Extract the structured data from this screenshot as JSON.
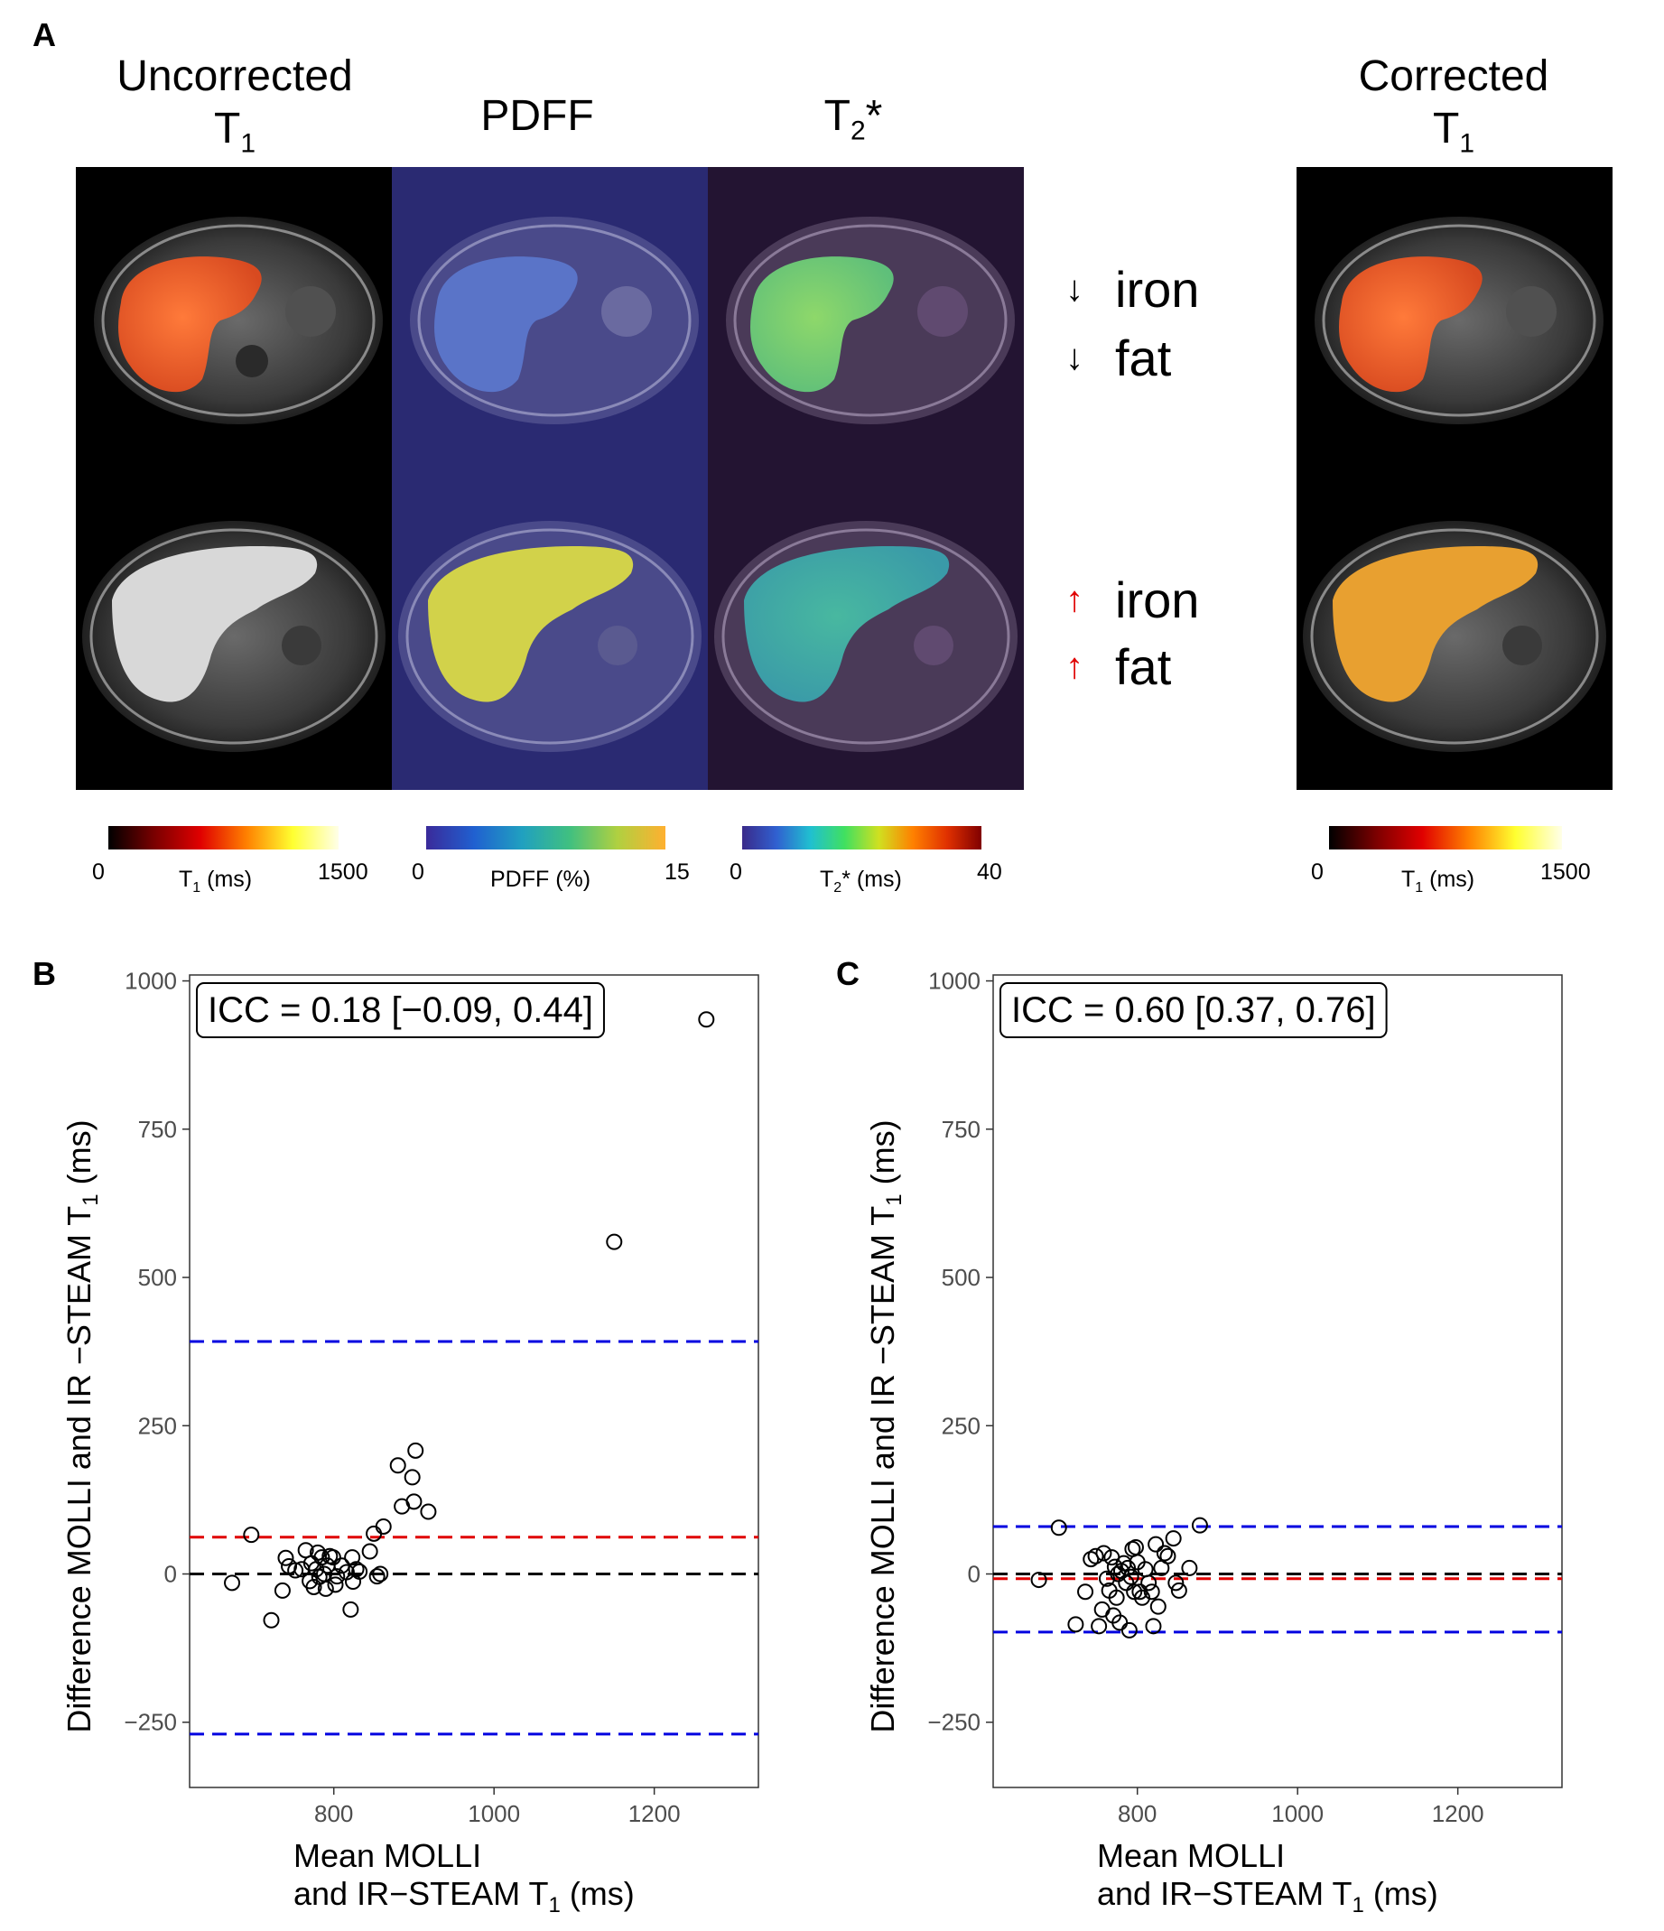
{
  "panel_a": {
    "letter": "A",
    "titles": {
      "uncorrected_line1": "Uncorrected",
      "uncorrected_sym": "T",
      "uncorrected_sub": "1",
      "pdff": "PDFF",
      "t2_sym": "T",
      "t2_sub": "2",
      "t2_star": "*",
      "corrected_line1": "Corrected",
      "corrected_sym": "T",
      "corrected_sub": "1"
    },
    "annotations": {
      "top": {
        "arrow": "↓",
        "iron": "iron",
        "fat": "fat",
        "color": "#000000"
      },
      "bottom": {
        "arrow": "↑",
        "iron": "iron",
        "fat": "fat",
        "color": "#e00000"
      }
    },
    "colorbars": {
      "t1_left": {
        "min": "0",
        "max": "1500",
        "label_sym": "T",
        "label_sub": "1",
        "label_unit": " (ms)"
      },
      "pdff": {
        "min": "0",
        "max": "15",
        "label": "PDFF (%)"
      },
      "t2": {
        "min": "0",
        "max": "40",
        "label_sym": "T",
        "label_sub": "2",
        "label_rest": "* (ms)"
      },
      "t1_right": {
        "min": "0",
        "max": "1500",
        "label_sym": "T",
        "label_sub": "1",
        "label_unit": " (ms)"
      }
    }
  },
  "chart_data": [
    {
      "panel": "B",
      "type": "scatter",
      "icc": "ICC = 0.18 [−0.09, 0.44]",
      "xlabel_line1": "Mean MOLLI",
      "xlabel_line2_pre": "and IR−STEAM T",
      "xlabel_sub": "1",
      "xlabel_line2_post": " (ms)",
      "ylabel_pre": "Difference MOLLI and IR −STEAM T",
      "ylabel_sub": "1",
      "ylabel_post": " (ms)",
      "xlim": [
        620,
        1330
      ],
      "ylim": [
        -360,
        1010
      ],
      "xticks": [
        800,
        1000,
        1200
      ],
      "yticks": [
        1000,
        750,
        500,
        250,
        0,
        -250
      ],
      "ytick_labels": [
        "1000",
        "750",
        "500",
        "250",
        "0",
        "−250"
      ],
      "lines": [
        {
          "y": 392,
          "color": "#0000e0",
          "name": "upper limit of agreement"
        },
        {
          "y": 62,
          "color": "#e00000",
          "name": "mean difference"
        },
        {
          "y": 0,
          "color": "#000000",
          "name": "zero line"
        },
        {
          "y": -270,
          "color": "#0000e0",
          "name": "lower limit of agreement"
        }
      ],
      "points": [
        [
          673,
          -15
        ],
        [
          697,
          66
        ],
        [
          722,
          -78
        ],
        [
          736,
          -28
        ],
        [
          740,
          27
        ],
        [
          744,
          13
        ],
        [
          752,
          6
        ],
        [
          760,
          8
        ],
        [
          765,
          40
        ],
        [
          770,
          -12
        ],
        [
          772,
          18
        ],
        [
          775,
          -22
        ],
        [
          778,
          8
        ],
        [
          780,
          36
        ],
        [
          782,
          -5
        ],
        [
          785,
          28
        ],
        [
          788,
          0
        ],
        [
          790,
          -25
        ],
        [
          792,
          14
        ],
        [
          795,
          30
        ],
        [
          799,
          28
        ],
        [
          802,
          -18
        ],
        [
          804,
          -4
        ],
        [
          810,
          14
        ],
        [
          816,
          3
        ],
        [
          821,
          -60
        ],
        [
          823,
          28
        ],
        [
          824,
          -13
        ],
        [
          828,
          8
        ],
        [
          832,
          4
        ],
        [
          845,
          38
        ],
        [
          850,
          68
        ],
        [
          854,
          -4
        ],
        [
          858,
          0
        ],
        [
          862,
          80
        ],
        [
          880,
          183
        ],
        [
          885,
          114
        ],
        [
          898,
          163
        ],
        [
          900,
          122
        ],
        [
          902,
          208
        ],
        [
          918,
          105
        ],
        [
          1150,
          560
        ],
        [
          1265,
          935
        ]
      ]
    },
    {
      "panel": "C",
      "type": "scatter",
      "icc": "ICC = 0.60 [0.37, 0.76]",
      "xlabel_line1": "Mean MOLLI",
      "xlabel_line2_pre": "and IR−STEAM T",
      "xlabel_sub": "1",
      "xlabel_line2_post": " (ms)",
      "ylabel_pre": "Difference MOLLI and IR −STEAM T",
      "ylabel_sub": "1",
      "ylabel_post": " (ms)",
      "xlim": [
        620,
        1330
      ],
      "ylim": [
        -360,
        1010
      ],
      "xticks": [
        800,
        1000,
        1200
      ],
      "yticks": [
        1000,
        750,
        500,
        250,
        0,
        -250
      ],
      "ytick_labels": [
        "1000",
        "750",
        "500",
        "250",
        "0",
        "−250"
      ],
      "lines": [
        {
          "y": 80,
          "color": "#0000e0",
          "name": "upper limit of agreement"
        },
        {
          "y": -8,
          "color": "#e00000",
          "name": "mean difference"
        },
        {
          "y": 0,
          "color": "#000000",
          "name": "zero line"
        },
        {
          "y": -98,
          "color": "#0000e0",
          "name": "lower limit of agreement"
        }
      ],
      "points": [
        [
          677,
          -10
        ],
        [
          702,
          78
        ],
        [
          723,
          -85
        ],
        [
          735,
          -30
        ],
        [
          742,
          25
        ],
        [
          748,
          30
        ],
        [
          752,
          -88
        ],
        [
          756,
          -60
        ],
        [
          758,
          35
        ],
        [
          762,
          -8
        ],
        [
          765,
          -28
        ],
        [
          768,
          28
        ],
        [
          770,
          -70
        ],
        [
          772,
          12
        ],
        [
          774,
          -40
        ],
        [
          776,
          0
        ],
        [
          778,
          -82
        ],
        [
          780,
          5
        ],
        [
          783,
          18
        ],
        [
          786,
          -15
        ],
        [
          788,
          10
        ],
        [
          790,
          -95
        ],
        [
          792,
          -5
        ],
        [
          794,
          42
        ],
        [
          796,
          -30
        ],
        [
          798,
          45
        ],
        [
          800,
          20
        ],
        [
          803,
          -30
        ],
        [
          806,
          -40
        ],
        [
          810,
          8
        ],
        [
          814,
          -15
        ],
        [
          818,
          -30
        ],
        [
          820,
          -88
        ],
        [
          823,
          50
        ],
        [
          826,
          -55
        ],
        [
          830,
          10
        ],
        [
          834,
          35
        ],
        [
          838,
          30
        ],
        [
          845,
          60
        ],
        [
          848,
          -15
        ],
        [
          852,
          -28
        ],
        [
          865,
          10
        ],
        [
          878,
          82
        ]
      ]
    }
  ]
}
